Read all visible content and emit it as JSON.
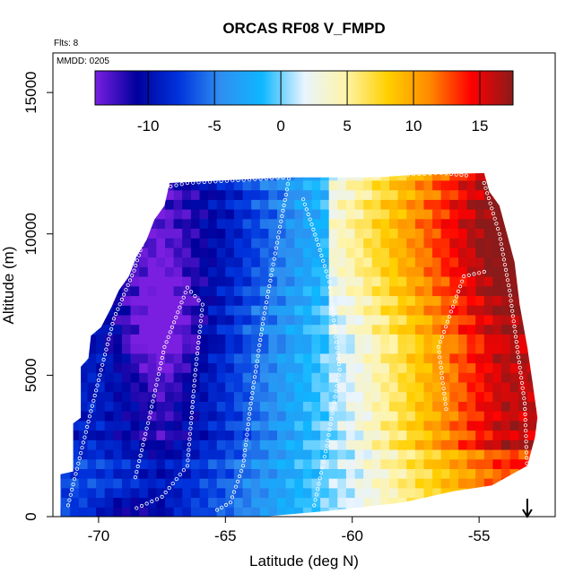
{
  "chart_data": {
    "type": "heatmap",
    "title": "ORCAS RF08 V_FMPD",
    "annotations": [
      "Flts: 8",
      "MMDD: 0205"
    ],
    "xlabel": "Latitude (deg N)",
    "ylabel": "Altitude (m)",
    "xlim": [
      -71.8,
      -52.0
    ],
    "ylim": [
      0,
      16400
    ],
    "x_ticks": [
      -70,
      -65,
      -60,
      -55
    ],
    "x_tick_labels": [
      "-70",
      "-65",
      "-60",
      "-55"
    ],
    "y_ticks": [
      0,
      5000,
      10000,
      15000
    ],
    "y_tick_labels": [
      "0",
      "5000",
      "10000",
      "15000"
    ],
    "colorbar": {
      "range": [
        -14,
        17.5
      ],
      "ticks": [
        -10,
        -5,
        0,
        5,
        10,
        15
      ],
      "tick_labels": [
        "-10",
        "-5",
        "0",
        "5",
        "10",
        "15"
      ],
      "colors": [
        "#7a1fe0",
        "#00009c",
        "#0033dd",
        "#2f8ef0",
        "#0fb7ff",
        "#e8f4ff",
        "#fff4a8",
        "#ffd000",
        "#ff8a00",
        "#ff0000",
        "#8b1a1a"
      ]
    },
    "field_summary": {
      "coverage_latitude": [
        -71.5,
        -53.5
      ],
      "coverage_altitude_top": [
        11800,
        12100
      ],
      "profile": [
        {
          "lat": -70,
          "value": -9
        },
        {
          "lat": -67.5,
          "value": -12
        },
        {
          "lat": -65,
          "value": -8
        },
        {
          "lat": -62.5,
          "value": -3
        },
        {
          "lat": -60,
          "value": 2
        },
        {
          "lat": -57.5,
          "value": 8
        },
        {
          "lat": -55,
          "value": 14
        },
        {
          "lat": -54,
          "value": 16
        }
      ]
    },
    "flight_track": "white open circles",
    "marker": {
      "symbol": "down-arrow",
      "lat": -53.1
    }
  }
}
